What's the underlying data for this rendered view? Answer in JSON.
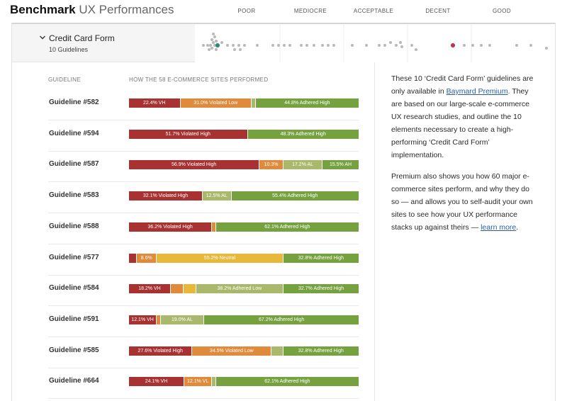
{
  "header": {
    "title_bold": "Benchmark",
    "title_light": "UX Performances",
    "scale": [
      "POOR",
      "MEDIOCRE",
      "ACCEPTABLE",
      "DECENT",
      "GOOD"
    ]
  },
  "section": {
    "title": "Credit Card Form",
    "subtitle": "10 Guidelines"
  },
  "table": {
    "col_guideline": "GUIDELINE",
    "col_performance": "HOW THE 58 E-COMMERCE SITES PERFORMED"
  },
  "colors": {
    "violated_high": "#a83232",
    "violated_low": "#e08a3c",
    "neutral": "#e8b83a",
    "adhered_low": "#a9b86a",
    "adhered_high": "#75a23f"
  },
  "rows": [
    {
      "label": "Guideline #582",
      "segments": [
        {
          "pct": 22.4,
          "type": "violated_high",
          "text": "22.4% VH"
        },
        {
          "pct": 31.0,
          "type": "violated_low",
          "text": "31.0% Violated Low"
        },
        {
          "pct": 1.8,
          "type": "adhered_low",
          "text": ""
        },
        {
          "pct": 44.8,
          "type": "adhered_high",
          "text": "44.8% Adhered High"
        }
      ]
    },
    {
      "label": "Guideline #594",
      "segments": [
        {
          "pct": 51.7,
          "type": "violated_high",
          "text": "51.7% Violated High"
        },
        {
          "pct": 48.3,
          "type": "adhered_high",
          "text": "48.3% Adhered High"
        }
      ]
    },
    {
      "label": "Guideline #587",
      "segments": [
        {
          "pct": 56.9,
          "type": "violated_high",
          "text": "56.9% Violated High"
        },
        {
          "pct": 10.3,
          "type": "violated_low",
          "text": "10.3%"
        },
        {
          "pct": 17.2,
          "type": "adhered_low",
          "text": "17.2% AL"
        },
        {
          "pct": 15.5,
          "type": "adhered_high",
          "text": "15.5% AH"
        }
      ]
    },
    {
      "label": "Guideline #583",
      "segments": [
        {
          "pct": 32.1,
          "type": "violated_high",
          "text": "32.1% Violated High"
        },
        {
          "pct": 12.5,
          "type": "adhered_low",
          "text": "12.5% AL"
        },
        {
          "pct": 55.4,
          "type": "adhered_high",
          "text": "55.4% Adhered High"
        }
      ]
    },
    {
      "label": "Guideline #588",
      "segments": [
        {
          "pct": 36.2,
          "type": "violated_high",
          "text": "36.2% Violated High"
        },
        {
          "pct": 1.7,
          "type": "violated_low",
          "text": ""
        },
        {
          "pct": 62.1,
          "type": "adhered_high",
          "text": "62.1% Adhered High"
        }
      ]
    },
    {
      "label": "Guideline #577",
      "segments": [
        {
          "pct": 3.5,
          "type": "violated_high",
          "text": ""
        },
        {
          "pct": 8.6,
          "type": "violated_low",
          "text": "8.6%"
        },
        {
          "pct": 55.2,
          "type": "neutral",
          "text": "55.2% Neutral"
        },
        {
          "pct": 32.8,
          "type": "adhered_high",
          "text": "32.8% Adhered High"
        }
      ]
    },
    {
      "label": "Guideline #584",
      "segments": [
        {
          "pct": 18.2,
          "type": "violated_high",
          "text": "18.2% VH"
        },
        {
          "pct": 5.5,
          "type": "violated_low",
          "text": ""
        },
        {
          "pct": 5.5,
          "type": "neutral",
          "text": ""
        },
        {
          "pct": 38.2,
          "type": "adhered_low",
          "text": "38.2% Adhered Low"
        },
        {
          "pct": 32.7,
          "type": "adhered_high",
          "text": "32.7% Adhered High"
        }
      ]
    },
    {
      "label": "Guideline #591",
      "segments": [
        {
          "pct": 12.1,
          "type": "violated_high",
          "text": "12.1% VH"
        },
        {
          "pct": 1.7,
          "type": "violated_low",
          "text": ""
        },
        {
          "pct": 19.0,
          "type": "adhered_low",
          "text": "19.0% AL"
        },
        {
          "pct": 67.2,
          "type": "adhered_high",
          "text": "67.2% Adhered High"
        }
      ]
    },
    {
      "label": "Guideline #585",
      "segments": [
        {
          "pct": 27.6,
          "type": "violated_high",
          "text": "27.6% Violated High"
        },
        {
          "pct": 34.5,
          "type": "violated_low",
          "text": "34.5% Violated Low"
        },
        {
          "pct": 5.1,
          "type": "adhered_low",
          "text": ""
        },
        {
          "pct": 32.8,
          "type": "adhered_high",
          "text": "32.8% Adhered High"
        }
      ]
    },
    {
      "label": "Guideline #664",
      "segments": [
        {
          "pct": 24.1,
          "type": "violated_high",
          "text": "24.1% VH"
        },
        {
          "pct": 12.1,
          "type": "violated_low",
          "text": "12.1% VL"
        },
        {
          "pct": 1.7,
          "type": "adhered_low",
          "text": ""
        },
        {
          "pct": 62.1,
          "type": "adhered_high",
          "text": "62.1% Adhered High"
        }
      ]
    }
  ],
  "side": {
    "p1_pre": "These 10 ‘Credit Card Form’ guidelines are only available in ",
    "p1_link": "Baymard Premium",
    "p1_post": ". They are based on our large-scale e-commerce UX research studies, and outline the 10 elements necessary to create a high-performing ‘Credit Card Form’ implementation.",
    "p2_pre": "Premium also shows you how 60 major e-commerce sites perform, and why they do so — and allows you to self-audit your own sites to see how your UX performance stacks up against theirs — ",
    "p2_link": "learn more",
    "p2_post": "."
  }
}
